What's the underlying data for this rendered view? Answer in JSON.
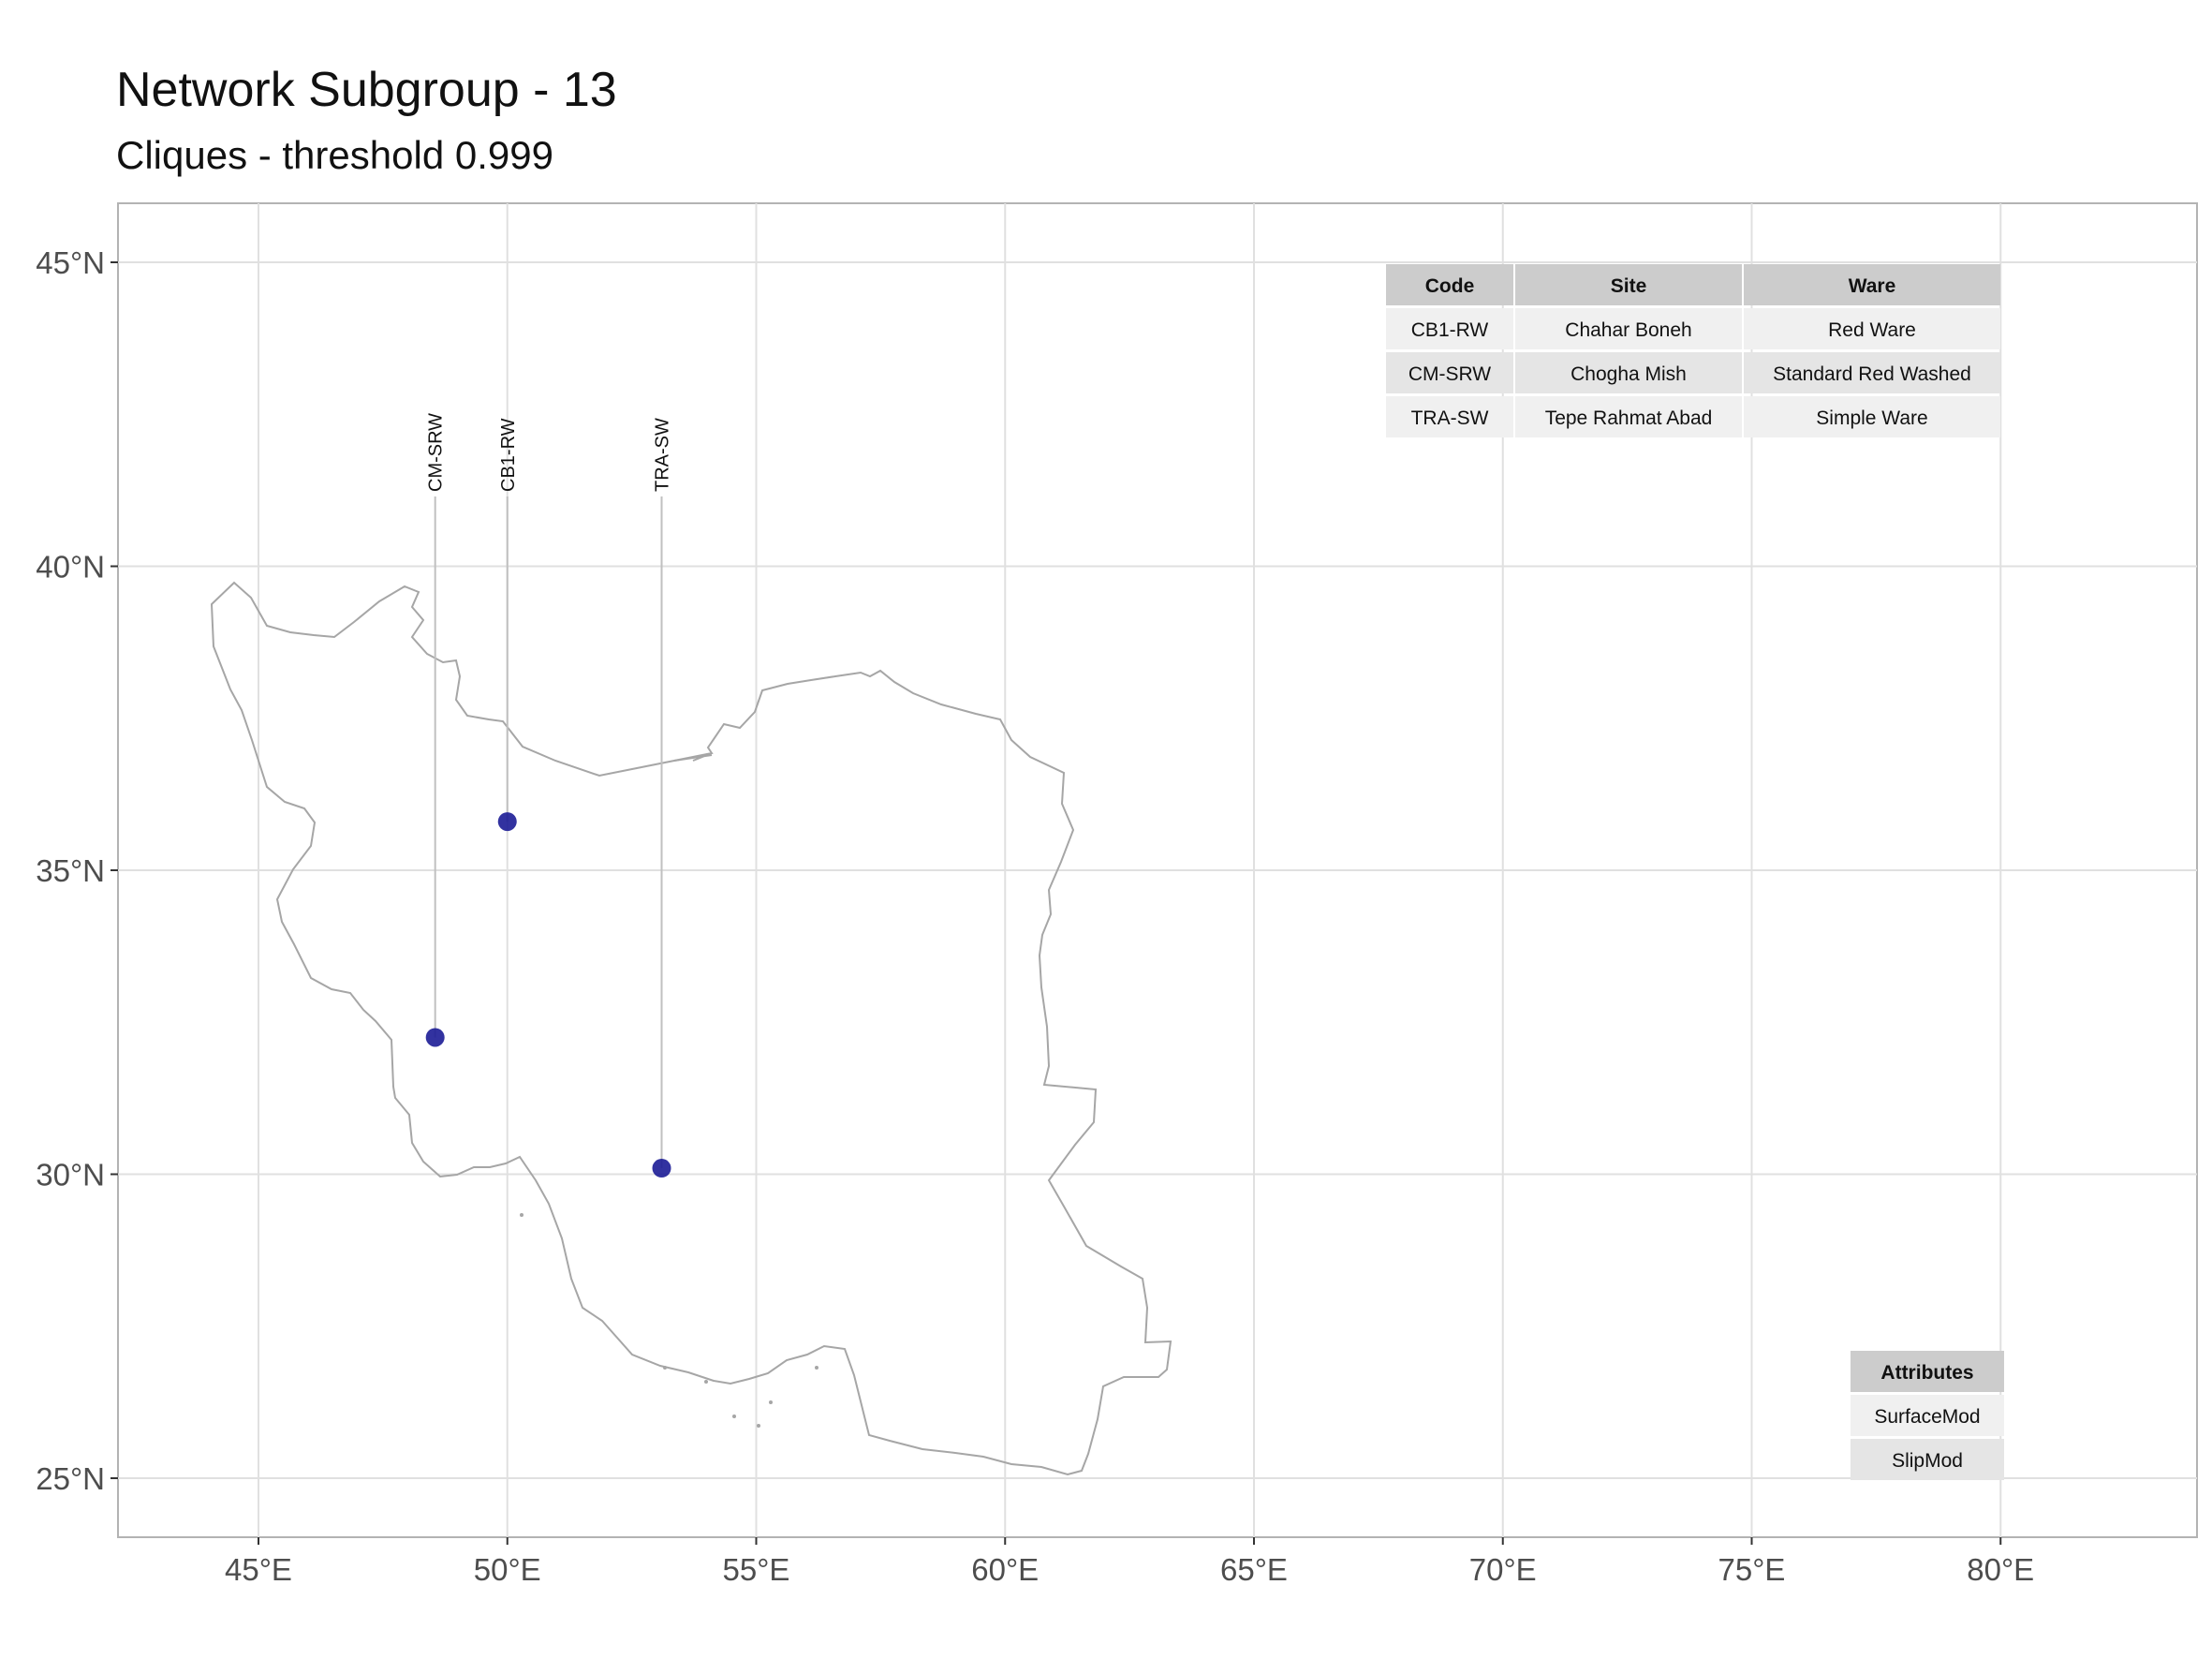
{
  "title": "Network Subgroup - 13",
  "subtitle": "Cliques - threshold 0.999",
  "chart_data": {
    "type": "scatter",
    "map": "Iran",
    "x_axis": {
      "range": [
        42.2,
        84.0
      ],
      "ticks": [
        45,
        50,
        55,
        60,
        65,
        70,
        75,
        80
      ],
      "tick_labels": [
        "45°E",
        "50°E",
        "55°E",
        "60°E",
        "65°E",
        "70°E",
        "75°E",
        "80°E"
      ]
    },
    "y_axis": {
      "range": [
        24.0,
        46.0
      ],
      "ticks": [
        25,
        30,
        35,
        40,
        45
      ],
      "tick_labels": [
        "25°N",
        "30°N",
        "35°N",
        "40°N",
        "45°N"
      ]
    },
    "grid": true,
    "point_color": "#1c1c96",
    "sites": [
      {
        "code": "CM-SRW",
        "lon": 48.55,
        "lat": 32.25
      },
      {
        "code": "CB1-RW",
        "lon": 50.0,
        "lat": 35.8
      },
      {
        "code": "TRA-SW",
        "lon": 53.1,
        "lat": 30.1
      }
    ]
  },
  "site_table": {
    "headers": [
      "Code",
      "Site",
      "Ware"
    ],
    "rows": [
      [
        "CB1-RW",
        "Chahar Boneh",
        "Red Ware"
      ],
      [
        "CM-SRW",
        "Chogha Mish",
        "Standard Red Washed"
      ],
      [
        "TRA-SW",
        "Tepe Rahmat Abad",
        "Simple Ware"
      ]
    ]
  },
  "attributes_table": {
    "header": "Attributes",
    "rows": [
      "SurfaceMod",
      "SlipMod"
    ]
  }
}
